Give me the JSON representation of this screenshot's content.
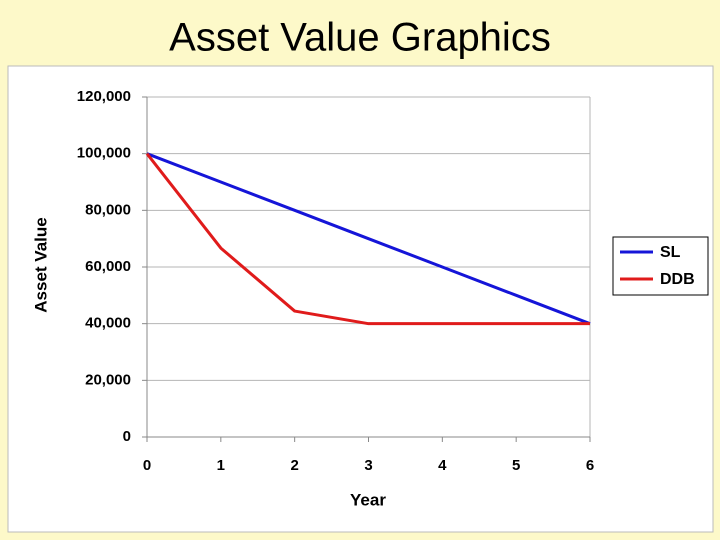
{
  "chart_data": {
    "type": "line",
    "title": "Asset Value Graphics",
    "x_label": "Year",
    "y_label": "Asset Value",
    "x": [
      0,
      1,
      2,
      3,
      4,
      5,
      6
    ],
    "series": [
      {
        "name": "SL",
        "color": "#1515d8",
        "values": [
          100000,
          90000,
          80000,
          70000,
          60000,
          50000,
          40000
        ]
      },
      {
        "name": "DDB",
        "color": "#e01b1b",
        "values": [
          100000,
          66667,
          44444,
          40000,
          40000,
          40000,
          40000
        ]
      }
    ],
    "xlim": [
      0,
      6
    ],
    "xticks": [
      0,
      1,
      2,
      3,
      4,
      5,
      6
    ],
    "ylim": [
      0,
      120000
    ],
    "yticks": [
      0,
      {
        "value": 20000,
        "label": "20,000"
      },
      {
        "value": 40000,
        "label": "40,000"
      },
      {
        "value": 60000,
        "label": "60,000"
      },
      {
        "value": 80000,
        "label": "80,000"
      },
      {
        "value": 100000,
        "label": "100,000"
      },
      {
        "value": 120000,
        "label": "120,000"
      }
    ],
    "grid": true,
    "legend_position": "right"
  }
}
